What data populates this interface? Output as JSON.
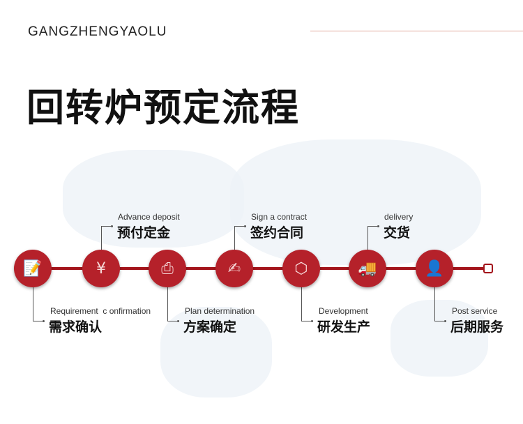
{
  "header": {
    "brand": "GANGZHENGYAOLU",
    "title": "回转炉预定流程"
  },
  "colors": {
    "accent": "#b5212a",
    "track": "#a3141b"
  },
  "steps": [
    {
      "en": "Requirement  c onfirmation",
      "cn": "需求确认",
      "icon": "document-edit-icon",
      "glyph": "📝",
      "position": "below"
    },
    {
      "en": "Advance deposit",
      "cn": "预付定金",
      "icon": "yen-icon",
      "glyph": "¥",
      "position": "above"
    },
    {
      "en": "Plan determination",
      "cn": "方案确定",
      "icon": "printer-icon",
      "glyph": "⎙",
      "position": "below"
    },
    {
      "en": "Sign a contract",
      "cn": "签约合同",
      "icon": "contract-sign-icon",
      "glyph": "✍",
      "position": "above"
    },
    {
      "en": "Development",
      "cn": "研发生产",
      "icon": "molecule-hexagon-icon",
      "glyph": "⬡",
      "position": "below"
    },
    {
      "en": "delivery",
      "cn": "交货",
      "icon": "truck-icon",
      "glyph": "🚚",
      "position": "above"
    },
    {
      "en": "Post service",
      "cn": "后期服务",
      "icon": "service-agent-icon",
      "glyph": "👤",
      "position": "below"
    }
  ]
}
